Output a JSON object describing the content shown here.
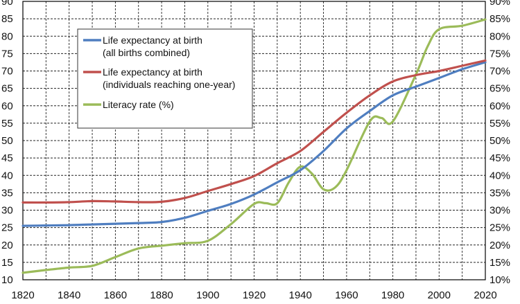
{
  "chart_data": {
    "type": "line",
    "title": "",
    "xlabel": "",
    "ylabel": "",
    "y2label": "",
    "xlim": [
      1820,
      2020
    ],
    "ylim": [
      10,
      90
    ],
    "y2lim": [
      10,
      90
    ],
    "grid": true,
    "legend_position": "top-left",
    "x_ticks": [
      1820,
      1840,
      1860,
      1880,
      1900,
      1920,
      1940,
      1960,
      1980,
      2000,
      2020
    ],
    "y_ticks": [
      10,
      15,
      20,
      25,
      30,
      35,
      40,
      45,
      50,
      55,
      60,
      65,
      70,
      75,
      80,
      85,
      90
    ],
    "y2_ticks": [
      "10%",
      "15%",
      "20%",
      "25%",
      "30%",
      "35%",
      "40%",
      "45%",
      "50%",
      "55%",
      "60%",
      "65%",
      "70%",
      "75%",
      "80%",
      "85%",
      "90%"
    ],
    "series": [
      {
        "name": "Life expectancy at birth",
        "name_line2": "(all births combined)",
        "color": "#4f7ec0",
        "x": [
          1820,
          1830,
          1840,
          1850,
          1860,
          1870,
          1880,
          1890,
          1900,
          1910,
          1920,
          1930,
          1940,
          1950,
          1960,
          1970,
          1980,
          1990,
          2000,
          2010,
          2020
        ],
        "y": [
          25.5,
          25.6,
          25.7,
          25.9,
          26.1,
          26.3,
          26.6,
          27.8,
          29.8,
          31.8,
          34.5,
          38.0,
          41.5,
          47.0,
          53.5,
          58.5,
          63.0,
          65.5,
          68.0,
          70.5,
          72.5
        ]
      },
      {
        "name": "Life expectancy at birth",
        "name_line2": "(individuals reaching one-year)",
        "color": "#c0504d",
        "x": [
          1820,
          1830,
          1840,
          1850,
          1860,
          1870,
          1880,
          1890,
          1900,
          1910,
          1920,
          1930,
          1940,
          1950,
          1960,
          1970,
          1980,
          1990,
          2000,
          2010,
          2020
        ],
        "y": [
          32.2,
          32.2,
          32.3,
          32.6,
          32.5,
          32.3,
          32.4,
          33.5,
          35.5,
          37.5,
          39.8,
          43.5,
          47.0,
          52.5,
          58.0,
          63.0,
          67.0,
          68.8,
          70.0,
          71.5,
          73.0
        ]
      },
      {
        "name": "Literacy rate (%)",
        "name_line2": "",
        "color": "#9bbb59",
        "x": [
          1820,
          1830,
          1840,
          1850,
          1860,
          1870,
          1880,
          1890,
          1900,
          1910,
          1920,
          1925,
          1930,
          1935,
          1940,
          1945,
          1950,
          1955,
          1960,
          1970,
          1975,
          1980,
          1990,
          1995,
          2000,
          2010,
          2020
        ],
        "y": [
          12.0,
          12.8,
          13.5,
          14.0,
          16.5,
          19.0,
          19.8,
          20.5,
          21.2,
          26.0,
          31.8,
          32.0,
          32.0,
          38.0,
          42.5,
          40.5,
          36.0,
          36.5,
          41.5,
          55.5,
          56.5,
          55.5,
          69.0,
          77.0,
          82.0,
          83.0,
          84.8
        ]
      }
    ]
  }
}
